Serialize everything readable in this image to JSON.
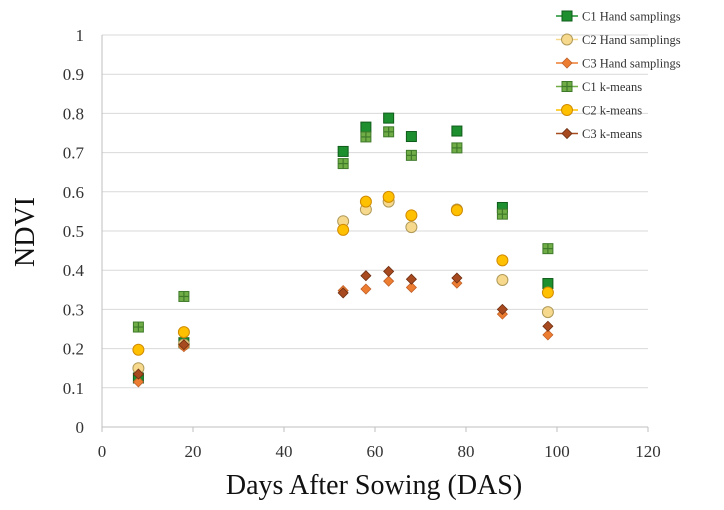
{
  "chart_data": {
    "type": "scatter",
    "title": "",
    "xlabel": "Days After Sowing (DAS)",
    "ylabel": "NDVI",
    "xlim": [
      0,
      120
    ],
    "ylim": [
      0,
      1
    ],
    "xticks": [
      "0",
      "20",
      "40",
      "60",
      "80",
      "100",
      "120"
    ],
    "yticks": [
      "0",
      "0.1",
      "0.2",
      "0.3",
      "0.4",
      "0.5",
      "0.6",
      "0.7",
      "0.8",
      "0.9",
      "1"
    ],
    "grid": "horizontal",
    "legend_position": "top-right",
    "series": [
      {
        "name": "C1 Hand samplings",
        "marker": "square",
        "color": "#1e8f2e",
        "stroke": "#0f5c1a",
        "x": [
          8,
          18,
          53,
          58,
          63,
          68,
          78,
          88,
          98
        ],
        "y": [
          0.125,
          0.215,
          0.703,
          0.765,
          0.788,
          0.741,
          0.755,
          0.56,
          0.366
        ]
      },
      {
        "name": "C2 Hand samplings",
        "marker": "circle",
        "color": "#f6d98c",
        "stroke": "#b09a5a",
        "x": [
          8,
          18,
          53,
          58,
          63,
          68,
          78,
          88,
          98
        ],
        "y": [
          0.15,
          0.21,
          0.525,
          0.555,
          0.575,
          0.51,
          0.555,
          0.375,
          0.293
        ]
      },
      {
        "name": "C3 Hand samplings",
        "marker": "diamond",
        "color": "#ed7d31",
        "stroke": "#c0612a",
        "x": [
          8,
          18,
          53,
          58,
          63,
          68,
          78,
          88,
          98
        ],
        "y": [
          0.115,
          0.205,
          0.348,
          0.352,
          0.372,
          0.356,
          0.367,
          0.288,
          0.235
        ]
      },
      {
        "name": "C1 k-means",
        "marker": "plus-square",
        "color": "#70ad47",
        "stroke": "#3f7a2a",
        "x": [
          8,
          18,
          53,
          58,
          63,
          68,
          78,
          88,
          98
        ],
        "y": [
          0.255,
          0.333,
          0.672,
          0.74,
          0.753,
          0.693,
          0.712,
          0.543,
          0.455
        ]
      },
      {
        "name": "C2 k-means",
        "marker": "circle",
        "color": "#ffc000",
        "stroke": "#d08b00",
        "x": [
          8,
          18,
          53,
          58,
          63,
          68,
          78,
          88,
          98
        ],
        "y": [
          0.197,
          0.242,
          0.503,
          0.575,
          0.587,
          0.54,
          0.553,
          0.425,
          0.343
        ]
      },
      {
        "name": "C3 k-means",
        "marker": "diamond",
        "color": "#a84a1f",
        "stroke": "#6e2f12",
        "x": [
          8,
          18,
          53,
          58,
          63,
          68,
          78,
          88,
          98
        ],
        "y": [
          0.135,
          0.21,
          0.342,
          0.386,
          0.397,
          0.377,
          0.38,
          0.3,
          0.257
        ]
      }
    ]
  }
}
